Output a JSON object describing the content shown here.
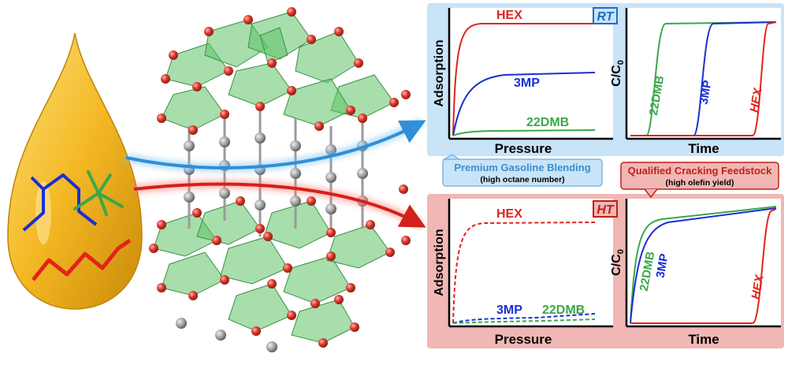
{
  "colors": {
    "hex": "#e2231a",
    "mp3": "#1a2fd6",
    "dmb22": "#3aa84a",
    "rt_panel": "#c9e3f7",
    "ht_panel": "#f0b7b5",
    "droplet": "#f2b81c",
    "framework_green": "#5fc267",
    "oxygen": "#d8362b",
    "carbon": "#9a9a9a"
  },
  "icons": {
    "droplet": "molecule-droplet-icon",
    "framework": "mof-framework-icon",
    "arrow_rt": "blue-arrow-icon",
    "arrow_ht": "red-arrow-icon"
  },
  "rt": {
    "tag": "RT",
    "callout_title": "Premium Gasoline Blending",
    "callout_sub": "(high octane number)",
    "isotherm": {
      "ylabel": "Adsorption",
      "xlabel": "Pressure",
      "labels": {
        "hex": "HEX",
        "mp3": "3MP",
        "dmb22": "22DMB"
      }
    },
    "breakthrough": {
      "ylabel": "C/C",
      "ylabel_sub": "0",
      "xlabel": "Time",
      "labels": {
        "dmb22": "22DMB",
        "mp3": "3MP",
        "hex": "HEX"
      }
    }
  },
  "ht": {
    "tag": "HT",
    "callout_title": "Qualified Cracking Feedstock",
    "callout_sub": "(high olefin yield)",
    "isotherm": {
      "ylabel": "Adsorption",
      "xlabel": "Pressure",
      "labels": {
        "hex": "HEX",
        "mp3": "3MP",
        "dmb22": "22DMB"
      }
    },
    "breakthrough": {
      "ylabel": "C/C",
      "ylabel_sub": "0",
      "xlabel": "Time",
      "labels": {
        "dmb22": "22DMB",
        "mp3": "3MP",
        "hex": "HEX"
      }
    }
  }
}
